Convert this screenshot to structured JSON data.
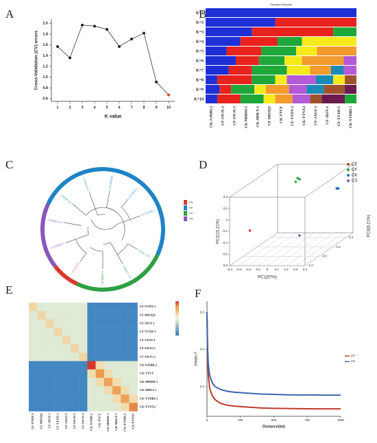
{
  "chart_data": [
    {
      "type": "line",
      "panel": "A",
      "x": [
        1,
        2,
        3,
        4,
        5,
        6,
        7,
        8,
        9,
        10
      ],
      "values": [
        1.57,
        1.36,
        1.97,
        1.95,
        1.89,
        1.57,
        1.71,
        1.82,
        0.91,
        0.67
      ],
      "color": "#333333",
      "point_colors": [
        "#222222",
        "#222222",
        "#222222",
        "#222222",
        "#222222",
        "#222222",
        "#222222",
        "#222222",
        "#222222",
        "#e8392d"
      ],
      "xlabel": "K value",
      "ylabel": "Cross-Validation (CV) errors",
      "xlim": [
        0.5,
        10.5
      ],
      "xticks": [
        1,
        2,
        3,
        4,
        5,
        6,
        7,
        8,
        9,
        10
      ],
      "ylim": [
        0.55,
        2.08
      ],
      "yticks": [
        0.6,
        0.8,
        {
          "value": 1,
          "label": "1.0"
        },
        1.2,
        1.4,
        1.6,
        1.8,
        {
          "value": 2,
          "label": "2.0"
        }
      ]
    },
    {
      "type": "structure",
      "panel": "B",
      "title": "Population Structure",
      "xlim": [
        0,
        13
      ],
      "categories": [
        "CK-NJHBL2",
        "CF-SWJS-2",
        "CF-SWJS-3",
        "CK-MHDH-1",
        "CK-MHLY-1",
        "CF-MDJQS",
        "CK-YTCF",
        "CF-YTDY-2",
        "CK-YTNX2",
        "CF-JAGS-3",
        "CF-JDJY-1",
        "CF-YTXD-1",
        "CK-YTHBL5"
      ],
      "rows": [
        {
          "label": "K=1",
          "segments": [
            {
              "color": "#1f2fd6",
              "width": 13
            }
          ]
        },
        {
          "label": "K=2",
          "segments": [
            {
              "color": "#1f2fd6",
              "width": 6
            },
            {
              "color": "#e8231d",
              "width": 7
            }
          ]
        },
        {
          "label": "K=3",
          "segments": [
            {
              "color": "#1f2fd6",
              "width": 4
            },
            {
              "color": "#e8231d",
              "width": 7
            },
            {
              "color": "#1ea83a",
              "width": 2
            }
          ]
        },
        {
          "label": "K=4",
          "segments": [
            {
              "color": "#1f2fd6",
              "width": 3
            },
            {
              "color": "#e8231d",
              "width": 3.2
            },
            {
              "color": "#1ea83a",
              "width": 2.1
            },
            {
              "color": "#f6ea1c",
              "width": 4.7
            }
          ]
        },
        {
          "label": "K=5",
          "segments": [
            {
              "color": "#1f2fd6",
              "width": 1.8
            },
            {
              "color": "#e8231d",
              "width": 3
            },
            {
              "color": "#1ea83a",
              "width": 3
            },
            {
              "color": "#f6ea1c",
              "width": 1.8
            },
            {
              "color": "#f39a2e",
              "width": 3.4
            }
          ]
        },
        {
          "label": "K=6",
          "segments": [
            {
              "color": "#1f2fd6",
              "width": 2.6
            },
            {
              "color": "#e8231d",
              "width": 2
            },
            {
              "color": "#1ea83a",
              "width": 2.2
            },
            {
              "color": "#f6ea1c",
              "width": 1.5
            },
            {
              "color": "#f39a2e",
              "width": 3.6
            },
            {
              "color": "#b35ad6",
              "width": 1.1
            }
          ]
        },
        {
          "label": "K=7",
          "segments": [
            {
              "color": "#1f2fd6",
              "width": 2
            },
            {
              "color": "#e8231d",
              "width": 2
            },
            {
              "color": "#1ea83a",
              "width": 3
            },
            {
              "color": "#f6ea1c",
              "width": 2
            },
            {
              "color": "#f39a2e",
              "width": 1.8
            },
            {
              "color": "#1b8bb5",
              "width": 1.1
            },
            {
              "color": "#b35ad6",
              "width": 1.1
            }
          ]
        },
        {
          "label": "K=8",
          "segments": [
            {
              "color": "#1f2fd6",
              "width": 1
            },
            {
              "color": "#e8231d",
              "width": 3
            },
            {
              "color": "#1ea83a",
              "width": 2
            },
            {
              "color": "#f6ea1c",
              "width": 1
            },
            {
              "color": "#b35ad6",
              "width": 2.5
            },
            {
              "color": "#1b8bb5",
              "width": 1.5
            },
            {
              "color": "#f6ea1c",
              "width": 1
            },
            {
              "color": "#a0522d",
              "width": 1
            }
          ]
        },
        {
          "label": "K=9",
          "segments": [
            {
              "color": "#1f2fd6",
              "width": 1.2
            },
            {
              "color": "#e8231d",
              "width": 1
            },
            {
              "color": "#1ea83a",
              "width": 2
            },
            {
              "color": "#f6ea1c",
              "width": 1
            },
            {
              "color": "#f39a2e",
              "width": 2
            },
            {
              "color": "#b35ad6",
              "width": 1.5
            },
            {
              "color": "#1b8bb5",
              "width": 1.5
            },
            {
              "color": "#a0522d",
              "width": 1.8
            },
            {
              "color": "#6b1a4f",
              "width": 1
            }
          ]
        },
        {
          "label": "K=10",
          "segments": [
            {
              "color": "#1f2fd6",
              "width": 1
            },
            {
              "color": "#e8231d",
              "width": 2
            },
            {
              "color": "#1ea83a",
              "width": 2
            },
            {
              "color": "#f6ea1c",
              "width": 1
            },
            {
              "color": "#f39a2e",
              "width": 1.5
            },
            {
              "color": "#b35ad6",
              "width": 1.5
            },
            {
              "color": "#a0522d",
              "width": 1
            },
            {
              "color": "#6b1a4f",
              "width": 2
            },
            {
              "color": "#1ea83a",
              "width": 1
            }
          ]
        }
      ]
    },
    {
      "type": "tree",
      "panel": "C",
      "legend": [
        {
          "name": "CE",
          "color": "#d93a2e"
        },
        {
          "name": "CF",
          "color": "#1f84c6"
        },
        {
          "name": "CK",
          "color": "#2fa043"
        },
        {
          "name": "CS",
          "color": "#8a56b8"
        }
      ],
      "arcs": [
        {
          "color": "#1f84c6",
          "from": -65,
          "to": 115
        },
        {
          "color": "#2fa043",
          "from": 115,
          "to": 205
        },
        {
          "color": "#d93a2e",
          "from": 205,
          "to": 232
        },
        {
          "color": "#8a56b8",
          "from": 232,
          "to": 295
        }
      ],
      "leaves": [
        {
          "label": "CF-YTDY-2",
          "color": "#1f84c6",
          "angle": -20
        },
        {
          "label": "CF-MDJQS",
          "color": "#1f84c6",
          "angle": 10
        },
        {
          "label": "CF-JDJY-1",
          "color": "#1f84c6",
          "angle": 40
        },
        {
          "label": "CF-YTXD-1",
          "color": "#1f84c6",
          "angle": 70
        },
        {
          "label": "CF-SWJS-2",
          "color": "#1f84c6",
          "angle": -50
        },
        {
          "label": "CK-YTNX2",
          "color": "#2fa043",
          "angle": 120
        },
        {
          "label": "CK-YTHBL5",
          "color": "#2fa043",
          "angle": 150
        },
        {
          "label": "CK-MHLY-1",
          "color": "#2fa043",
          "angle": 180
        },
        {
          "label": "CE-YTCF",
          "color": "#d93a2e",
          "angle": 215
        },
        {
          "label": "CS-NJHBL2",
          "color": "#8a56b8",
          "angle": 250
        },
        {
          "label": "CS-MHDH-1",
          "color": "#8a56b8",
          "angle": 280
        }
      ]
    },
    {
      "type": "scatter3d",
      "panel": "D",
      "xlabel": "PC1(57%)",
      "ylabel": "PC2(10.21%)",
      "zlabel": "PC3(8.21%)",
      "xlim": [
        -0.4,
        0.4
      ],
      "xticks": [
        -0.4,
        -0.3,
        -0.2,
        -0.1,
        0,
        0.1,
        0.2,
        0.3,
        0.4
      ],
      "ylim": [
        -0.8,
        0.4
      ],
      "yticks": [
        -0.8,
        -0.6,
        -0.4,
        -0.2,
        0,
        0.2,
        0.4
      ],
      "zlim": [
        -1,
        0.4
      ],
      "zticks": [
        {
          "value": -1,
          "label": "-1.0"
        },
        -0.6,
        -0.2,
        0.2
      ],
      "series": [
        {
          "name": "CE",
          "color": "#d93a2e",
          "pc1": [
            -0.33
          ],
          "pc2": [
            -0.35
          ],
          "pc3": [
            -0.6
          ]
        },
        {
          "name": "CF",
          "color": "#2fa043",
          "pc1": [
            -0.06,
            -0.05,
            -0.07
          ],
          "pc2": [
            0.3,
            0.27,
            0.25
          ],
          "pc3": [
            0.05,
            0.08,
            0.02
          ]
        },
        {
          "name": "CK",
          "color": "#1f6fc6",
          "pc1": [
            0.3,
            0.31,
            0.32
          ],
          "pc2": [
            0.06,
            0.05,
            0.07
          ],
          "pc3": [
            0.2,
            0.22,
            0.18
          ]
        },
        {
          "name": "CS",
          "color": "#8a56b8",
          "pc1": [
            0.05
          ],
          "pc2": [
            -0.6
          ],
          "pc3": [
            -0.2
          ]
        }
      ]
    },
    {
      "type": "heatmap",
      "panel": "E",
      "rows": [
        "CF-YTDY-2",
        "CF-MDJQS",
        "CF-JDJY-1",
        "CF-YTXD-1",
        "CF-JAGS-3",
        "CF-SWJS-2",
        "CF-SWJS-3",
        "CK-NJHBL2",
        "CK-YTCF",
        "CK-MHDH-1",
        "CK-MHLY-1",
        "CK-YTHBL5",
        "CK-YTNX2"
      ],
      "columns": [
        "CF-YTDY-2",
        "CF-MDJQS",
        "CF-JDJY-1",
        "CF-YTXD-1",
        "CF-JAGS-3",
        "CF-SWJS-2",
        "CF-SWJS-3",
        "CK-NJHBL2",
        "CK-YTCF",
        "CK-MHDH-1",
        "CK-MHLY-1",
        "CK-YTHBL5",
        "CK-YTNX2"
      ],
      "colorscale": [
        [
          0,
          "#2f7bbf"
        ],
        [
          0.5,
          "#f3f6d6"
        ],
        [
          0.85,
          "#eb9a4e"
        ],
        [
          1,
          "#d73a2a"
        ]
      ],
      "matrix": [
        [
          0.62,
          0.45,
          0.45,
          0.45,
          0.45,
          0.45,
          0.45,
          0.05,
          0.05,
          0.05,
          0.05,
          0.05,
          0.05
        ],
        [
          0.45,
          0.62,
          0.45,
          0.45,
          0.45,
          0.45,
          0.45,
          0.05,
          0.05,
          0.05,
          0.05,
          0.05,
          0.05
        ],
        [
          0.45,
          0.45,
          0.62,
          0.45,
          0.45,
          0.45,
          0.45,
          0.05,
          0.05,
          0.05,
          0.05,
          0.05,
          0.05
        ],
        [
          0.45,
          0.45,
          0.45,
          0.62,
          0.45,
          0.45,
          0.45,
          0.05,
          0.05,
          0.05,
          0.05,
          0.05,
          0.05
        ],
        [
          0.45,
          0.45,
          0.45,
          0.45,
          0.62,
          0.45,
          0.45,
          0.05,
          0.05,
          0.05,
          0.05,
          0.05,
          0.05
        ],
        [
          0.45,
          0.45,
          0.45,
          0.45,
          0.45,
          0.62,
          0.45,
          0.05,
          0.05,
          0.05,
          0.05,
          0.05,
          0.05
        ],
        [
          0.45,
          0.45,
          0.45,
          0.45,
          0.45,
          0.45,
          0.62,
          0.05,
          0.05,
          0.05,
          0.05,
          0.05,
          0.05
        ],
        [
          0.05,
          0.05,
          0.05,
          0.05,
          0.05,
          0.05,
          0.05,
          1,
          0.6,
          0.45,
          0.45,
          0.45,
          0.45
        ],
        [
          0.05,
          0.05,
          0.05,
          0.05,
          0.05,
          0.05,
          0.05,
          0.6,
          0.85,
          0.6,
          0.45,
          0.45,
          0.45
        ],
        [
          0.05,
          0.05,
          0.05,
          0.05,
          0.05,
          0.05,
          0.05,
          0.45,
          0.6,
          0.82,
          0.6,
          0.45,
          0.45
        ],
        [
          0.05,
          0.05,
          0.05,
          0.05,
          0.05,
          0.05,
          0.05,
          0.45,
          0.45,
          0.6,
          0.82,
          0.6,
          0.45
        ],
        [
          0.05,
          0.05,
          0.05,
          0.05,
          0.05,
          0.05,
          0.05,
          0.45,
          0.45,
          0.45,
          0.6,
          0.82,
          0.6
        ],
        [
          0.05,
          0.05,
          0.05,
          0.05,
          0.05,
          0.05,
          0.05,
          0.45,
          0.45,
          0.45,
          0.45,
          0.6,
          0.88
        ]
      ]
    },
    {
      "type": "line",
      "panel": "F",
      "xlabel": "Distance(kb)",
      "ylabel": "mean r²",
      "x": [
        0,
        5,
        10,
        20,
        40,
        60,
        100,
        150,
        200,
        300,
        400,
        500,
        600,
        700,
        800,
        900,
        1000
      ],
      "series": [
        {
          "name": "CF",
          "color": "#c0392b",
          "values": [
            0.58,
            0.35,
            0.26,
            0.19,
            0.15,
            0.13,
            0.11,
            0.1,
            0.095,
            0.09,
            0.085,
            0.083,
            0.082,
            0.081,
            0.08,
            0.08,
            0.08
          ]
        },
        {
          "name": "CK",
          "color": "#3a66b0",
          "values": [
            0.6,
            0.4,
            0.32,
            0.26,
            0.22,
            0.2,
            0.185,
            0.175,
            0.17,
            0.165,
            0.16,
            0.158,
            0.156,
            0.155,
            0.155,
            0.154,
            0.154
          ]
        }
      ],
      "xlim": [
        0,
        1000
      ],
      "xticks": [
        0,
        250,
        500,
        750,
        1000
      ],
      "ylim": [
        0.04,
        0.66
      ],
      "yticks": [
        0.2,
        0.4,
        0.6
      ]
    }
  ]
}
